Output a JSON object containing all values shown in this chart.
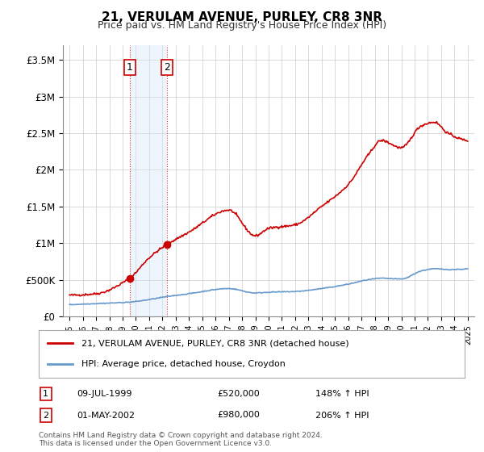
{
  "title": "21, VERULAM AVENUE, PURLEY, CR8 3NR",
  "subtitle": "Price paid vs. HM Land Registry's House Price Index (HPI)",
  "sale1_date_num": 1999.52,
  "sale1_price": 520000,
  "sale1_label": "1",
  "sale1_date_str": "09-JUL-1999",
  "sale1_hpi_pct": "148% ↑ HPI",
  "sale2_date_num": 2002.33,
  "sale2_price": 980000,
  "sale2_label": "2",
  "sale2_date_str": "01-MAY-2002",
  "sale2_hpi_pct": "206% ↑ HPI",
  "property_line_color": "#cc0000",
  "hpi_line_color": "#6699cc",
  "sale_dot_color": "#cc0000",
  "shade_color": "#d0e4f7",
  "legend1": "21, VERULAM AVENUE, PURLEY, CR8 3NR (detached house)",
  "legend2": "HPI: Average price, detached house, Croydon",
  "footnote": "Contains HM Land Registry data © Crown copyright and database right 2024.\nThis data is licensed under the Open Government Licence v3.0.",
  "ylim": [
    0,
    3700000
  ],
  "xlim_start": 1994.5,
  "xlim_end": 2025.5,
  "yticks": [
    0,
    500000,
    1000000,
    1500000,
    2000000,
    2500000,
    3000000,
    3500000
  ],
  "ytick_labels": [
    "£0",
    "£500K",
    "£1M",
    "£1.5M",
    "£2M",
    "£2.5M",
    "£3M",
    "£3.5M"
  ],
  "xticks": [
    1995,
    1996,
    1997,
    1998,
    1999,
    2000,
    2001,
    2002,
    2003,
    2004,
    2005,
    2006,
    2007,
    2008,
    2009,
    2010,
    2011,
    2012,
    2013,
    2014,
    2015,
    2016,
    2017,
    2018,
    2019,
    2020,
    2021,
    2022,
    2023,
    2024,
    2025
  ],
  "background_color": "#ffffff",
  "grid_color": "#cccccc"
}
